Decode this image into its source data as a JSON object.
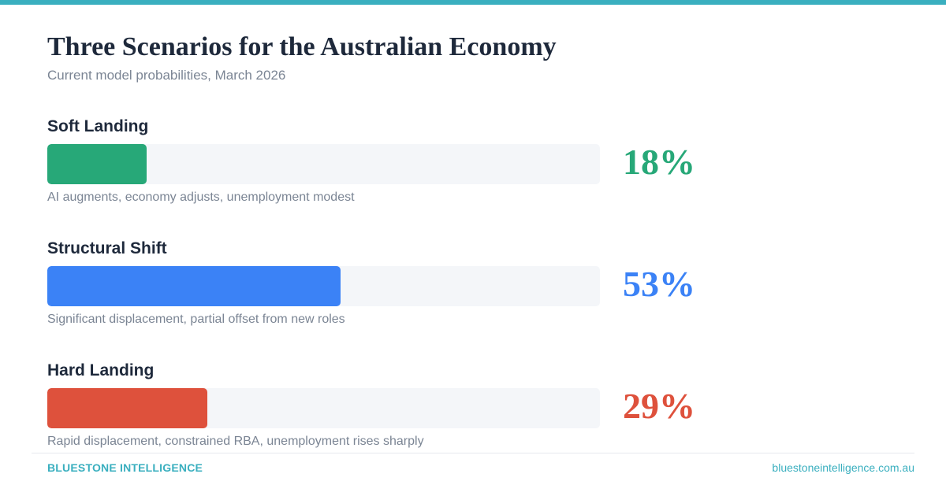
{
  "header": {
    "title": "Three Scenarios for the Australian Economy",
    "subtitle": "Current model probabilities, March 2026"
  },
  "scenarios": [
    {
      "name": "Soft Landing",
      "value": 18,
      "label": "18%",
      "description": "AI augments, economy adjusts, unemployment modest",
      "color": "#27a878"
    },
    {
      "name": "Structural Shift",
      "value": 53,
      "label": "53%",
      "description": "Significant displacement, partial offset from new roles",
      "color": "#3b82f6"
    },
    {
      "name": "Hard Landing",
      "value": 29,
      "label": "29%",
      "description": "Rapid displacement, constrained RBA, unemployment rises sharply",
      "color": "#de513c"
    }
  ],
  "footer": {
    "brand": "BLUESTONE INTELLIGENCE",
    "website": "bluestoneintelligence.com.au"
  },
  "colors": {
    "accent": "#3aafbf",
    "track": "#f4f6f9",
    "title": "#1e293b",
    "muted": "#7b8594"
  },
  "chart_data": {
    "type": "bar",
    "orientation": "horizontal",
    "title": "Three Scenarios for the Australian Economy",
    "subtitle": "Current model probabilities, March 2026",
    "categories": [
      "Soft Landing",
      "Structural Shift",
      "Hard Landing"
    ],
    "values": [
      18,
      53,
      29
    ],
    "value_labels": [
      "18%",
      "53%",
      "29%"
    ],
    "annotations": [
      "AI augments, economy adjusts, unemployment modest",
      "Significant displacement, partial offset from new roles",
      "Rapid displacement, constrained RBA, unemployment rises sharply"
    ],
    "colors": [
      "#27a878",
      "#3b82f6",
      "#de513c"
    ],
    "xlabel": "",
    "ylabel": "",
    "xlim": [
      0,
      100
    ],
    "unit": "%",
    "grid": false,
    "legend": "none"
  }
}
